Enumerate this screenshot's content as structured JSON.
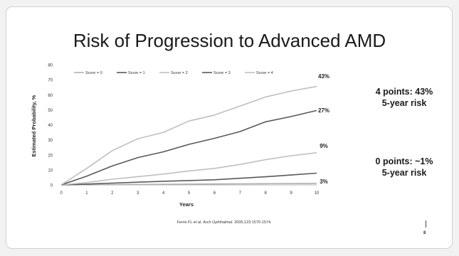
{
  "slide": {
    "title": "Risk of Progression to Advanced AMD",
    "citation_prefix": "Ferris FL et al. ",
    "citation_journal": "Arch Ophthalmol.",
    "citation_suffix": " 2005;123:1570-1574.",
    "page_number": "8"
  },
  "callouts": {
    "high_line1": "4 points: 43%",
    "high_line2": "5-year risk",
    "low_line1": "0 points: ~1%",
    "low_line2": "5-year risk"
  },
  "chart_data": {
    "type": "line",
    "xlabel": "Years",
    "ylabel": "Estimated Probability, %",
    "xlim": [
      0,
      10
    ],
    "ylim": [
      0,
      80
    ],
    "x_ticks": [
      0,
      1,
      2,
      3,
      4,
      5,
      6,
      7,
      8,
      9,
      10
    ],
    "y_ticks": [
      0,
      10,
      20,
      30,
      40,
      50,
      60,
      70,
      80
    ],
    "grid": false,
    "legend_position": "top",
    "x": [
      0,
      1,
      2,
      3,
      4,
      5,
      6,
      7,
      8,
      9,
      10
    ],
    "series": [
      {
        "name": "Score = 0",
        "color": "#b0b0b0",
        "values": [
          0,
          0.1,
          0.2,
          0.3,
          0.4,
          0.5,
          0.6,
          0.7,
          0.8,
          0.9,
          1.0
        ]
      },
      {
        "name": "Score = 1",
        "color": "#595959",
        "values": [
          0,
          0.5,
          1.2,
          1.8,
          2.4,
          2.9,
          3.4,
          4.4,
          5.4,
          6.6,
          7.8
        ]
      },
      {
        "name": "Score = 2",
        "color": "#bfbfbf",
        "values": [
          0,
          1.5,
          3.8,
          5.5,
          7.2,
          9.3,
          11.0,
          13.6,
          16.8,
          19.4,
          21.4
        ]
      },
      {
        "name": "Score = 3",
        "color": "#595959",
        "values": [
          0,
          5.8,
          12.6,
          18.2,
          22.0,
          27.0,
          31.0,
          35.5,
          42.0,
          45.5,
          49.5
        ]
      },
      {
        "name": "Score = 4",
        "color": "#bfbfbf",
        "values": [
          0,
          11.0,
          22.8,
          30.7,
          35.0,
          42.5,
          46.5,
          52.5,
          58.5,
          62.5,
          65.5
        ]
      }
    ],
    "annotations": [
      "43%",
      "27%",
      "9%",
      "3%"
    ]
  }
}
